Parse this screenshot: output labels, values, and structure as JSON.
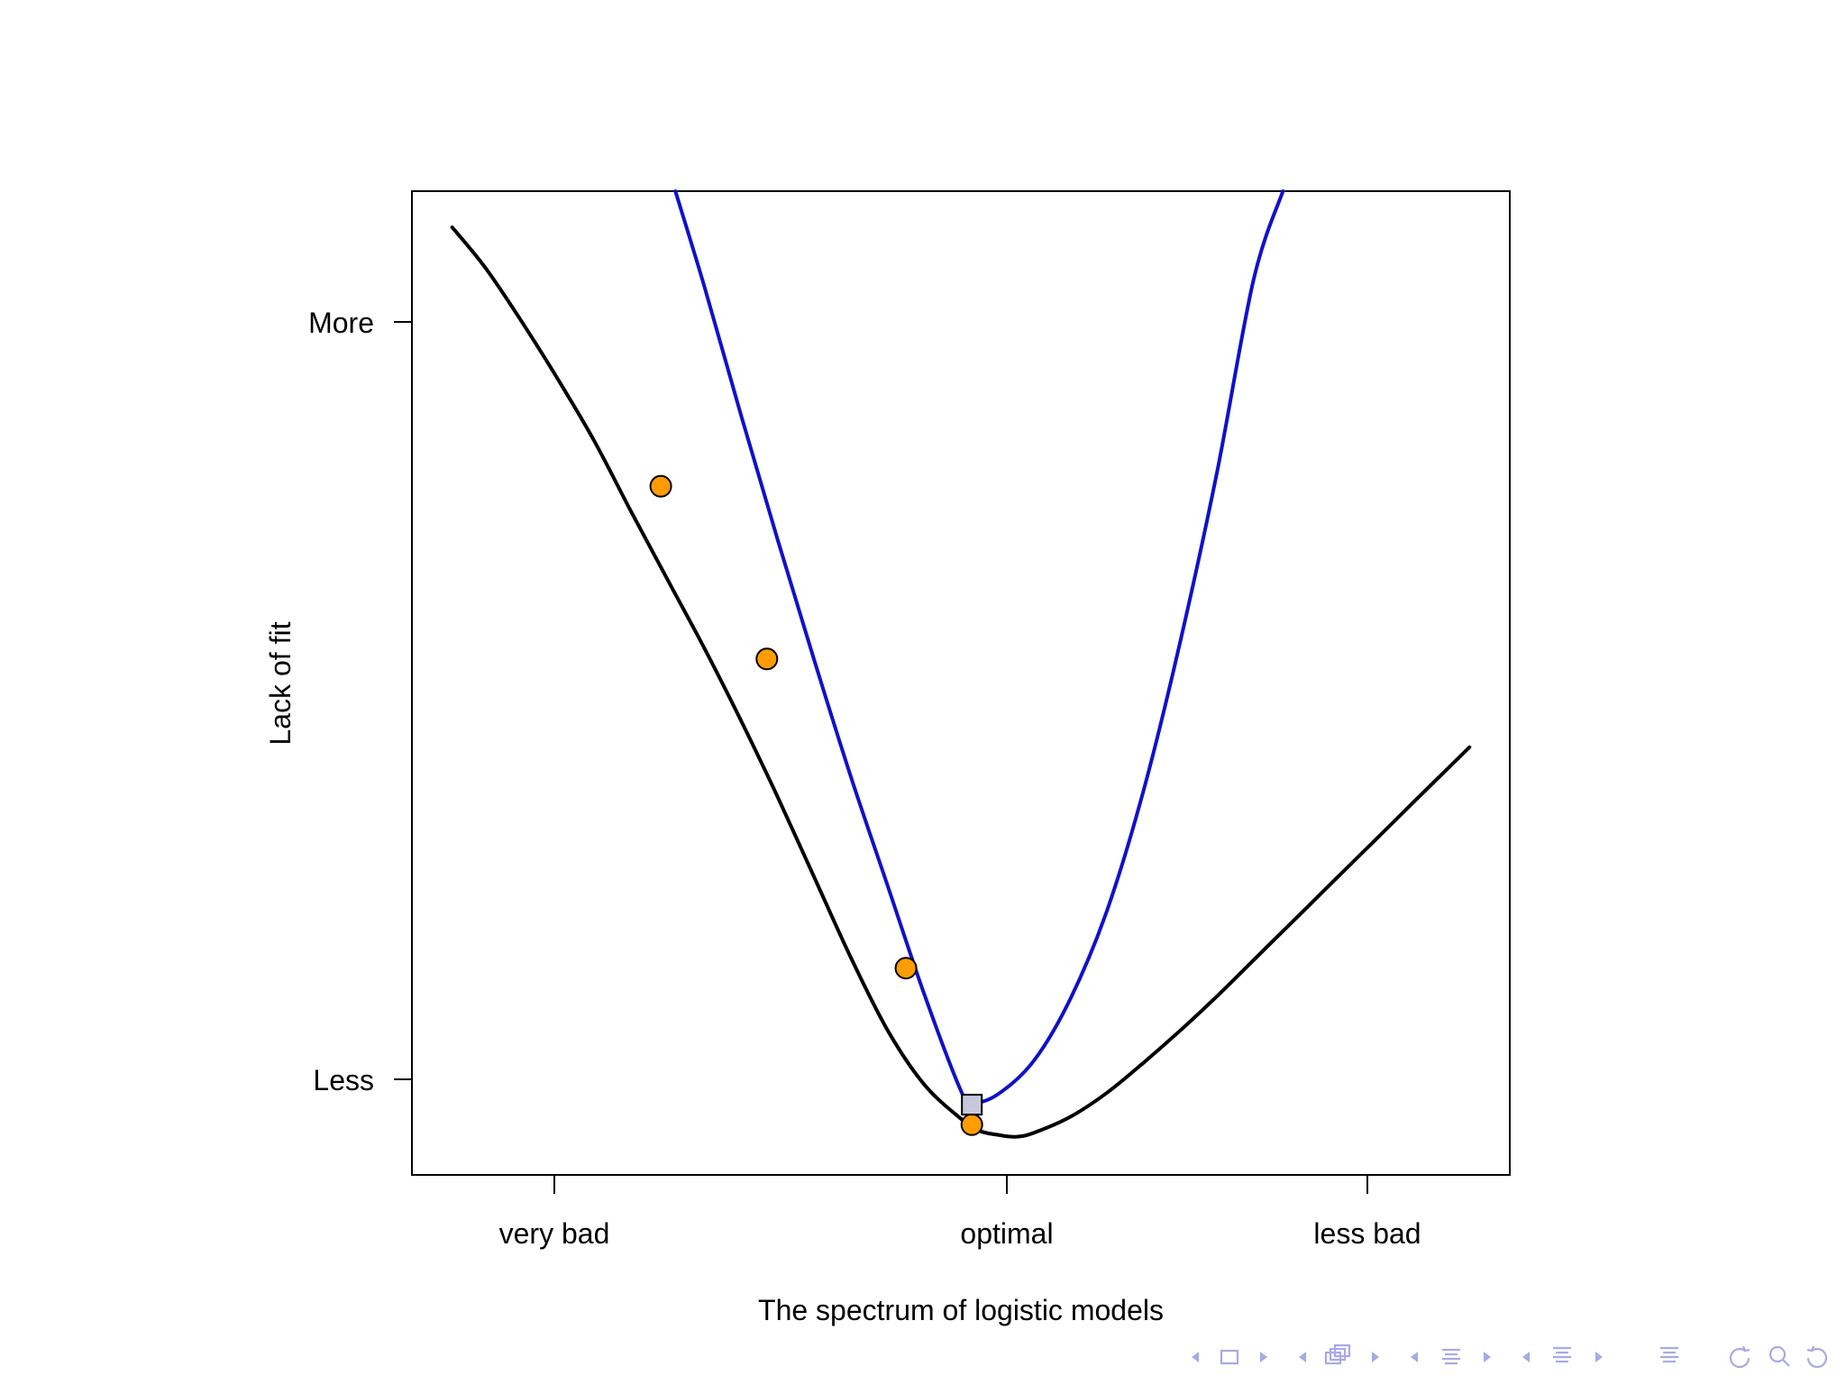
{
  "chart_data": {
    "type": "line",
    "title": "",
    "xlabel": "The spectrum of logistic models",
    "ylabel": "Lack of fit",
    "xlim": [
      -1.5,
      1.5
    ],
    "ylim": [
      -1.2,
      3.7
    ],
    "x_ticks": [
      {
        "value": -1.1,
        "label": "very bad"
      },
      {
        "value": 0.15,
        "label": "optimal"
      },
      {
        "value": 1.15,
        "label": "less bad"
      }
    ],
    "y_ticks": [
      {
        "value": -0.73,
        "label": "Less"
      },
      {
        "value": 3.05,
        "label": "More"
      }
    ],
    "grid": false,
    "legend": null,
    "series": [
      {
        "color": "#000000",
        "x": [
          -1.39,
          -1.3,
          -1.2,
          -1.1,
          -1.0,
          -0.9,
          -0.8,
          -0.7,
          -0.6,
          -0.5,
          -0.4,
          -0.3,
          -0.2,
          -0.1,
          0.0,
          0.05,
          0.1,
          0.15,
          0.2,
          0.3,
          0.4,
          0.5,
          0.6,
          0.7,
          0.8,
          0.9,
          1.0,
          1.1,
          1.2,
          1.3,
          1.39
        ],
        "y": [
          3.52,
          3.32,
          3.05,
          2.76,
          2.45,
          2.1,
          1.76,
          1.42,
          1.06,
          0.68,
          0.28,
          -0.12,
          -0.48,
          -0.75,
          -0.92,
          -0.98,
          -1.0,
          -1.01,
          -0.99,
          -0.91,
          -0.79,
          -0.64,
          -0.48,
          -0.31,
          -0.13,
          0.05,
          0.23,
          0.41,
          0.59,
          0.77,
          0.93
        ]
      },
      {
        "color": "#1010cc",
        "x": [
          -0.78,
          -0.7,
          -0.6,
          -0.5,
          -0.4,
          -0.3,
          -0.2,
          -0.1,
          0.0,
          0.03,
          0.1,
          0.2,
          0.3,
          0.4,
          0.5,
          0.6,
          0.7,
          0.8,
          0.88
        ],
        "y": [
          3.7,
          3.22,
          2.58,
          1.96,
          1.36,
          0.78,
          0.24,
          -0.3,
          -0.78,
          -0.84,
          -0.8,
          -0.63,
          -0.32,
          0.12,
          0.72,
          1.46,
          2.3,
          3.26,
          3.7
        ]
      }
    ],
    "markers": [
      {
        "shape": "circle",
        "color": "#ff9c00",
        "x": -0.82,
        "y": 2.23
      },
      {
        "shape": "circle",
        "color": "#ff9c00",
        "x": -0.53,
        "y": 1.37
      },
      {
        "shape": "circle",
        "color": "#ff9c00",
        "x": -0.15,
        "y": -0.17
      },
      {
        "shape": "circle",
        "color": "#ff9c00",
        "x": 0.03,
        "y": -0.95
      },
      {
        "shape": "square",
        "color": "#c8c8dc",
        "x": 0.03,
        "y": -0.85
      }
    ]
  },
  "navigation": {
    "icons": [
      "left-arrow-icon",
      "frame-icon",
      "right-arrow-icon",
      "left-arrow-icon",
      "subsection-icon",
      "right-arrow-icon",
      "left-arrow-icon",
      "section-icon",
      "right-arrow-icon",
      "left-arrow-icon",
      "section-icon",
      "right-arrow-icon",
      "align-icon",
      "undo-icon",
      "search-icon",
      "redo-icon"
    ],
    "color": "#a9a9e8"
  }
}
